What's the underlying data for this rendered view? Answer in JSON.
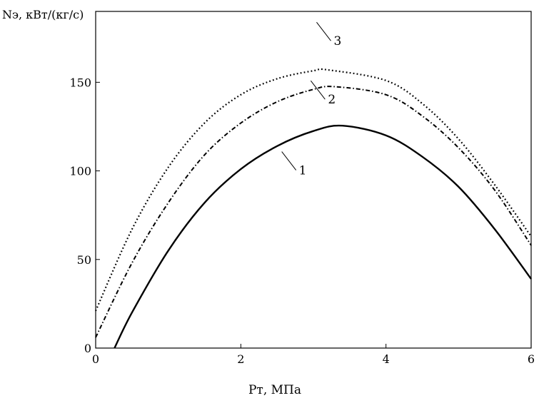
{
  "chart_data": {
    "type": "line",
    "ylabel": "Nэ, кВт/(кг/с)",
    "xlabel": "Pт, МПа",
    "xlim": [
      0,
      6
    ],
    "ylim": [
      0,
      190
    ],
    "x_ticks": [
      0,
      2,
      4,
      6
    ],
    "y_ticks": [
      0,
      50,
      100,
      150
    ],
    "grid": false,
    "series": [
      {
        "name": "1",
        "style": "solid",
        "x": [
          0.26,
          0.5,
          1.0,
          1.5,
          2.0,
          2.5,
          3.0,
          3.4,
          4.0,
          4.5,
          5.0,
          5.5,
          6.0
        ],
        "y": [
          0,
          20,
          55,
          82,
          101,
          114,
          122.5,
          125.5,
          120,
          108,
          91,
          67,
          39
        ]
      },
      {
        "name": "2",
        "style": "dashdot",
        "x": [
          0.0,
          0.5,
          1.0,
          1.5,
          2.0,
          2.5,
          3.0,
          3.3,
          4.0,
          4.5,
          5.0,
          5.5,
          6.0
        ],
        "y": [
          6,
          48,
          82,
          109,
          127,
          139,
          146,
          147.5,
          143,
          131,
          113,
          89,
          58
        ]
      },
      {
        "name": "3",
        "style": "dotted",
        "x": [
          0.0,
          0.5,
          1.0,
          1.5,
          2.0,
          2.5,
          3.0,
          3.2,
          4.0,
          4.5,
          5.0,
          5.5,
          6.0
        ],
        "y": [
          21,
          67,
          102,
          127,
          143,
          152,
          156.5,
          157,
          151,
          138,
          118,
          92,
          63
        ]
      }
    ],
    "curve_labels": [
      {
        "text": "1",
        "x": 2.8,
        "y": 98
      },
      {
        "text": "2",
        "x": 3.2,
        "y": 138
      },
      {
        "text": "3",
        "x": 3.28,
        "y": 171
      }
    ]
  }
}
